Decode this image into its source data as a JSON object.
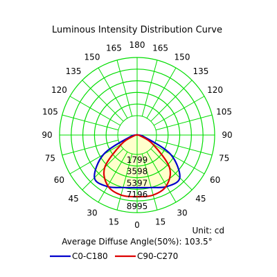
{
  "chart_data": {
    "type": "polar",
    "title": "Luminous Intensity Distribution Curve",
    "unit_label": "Unit: cd",
    "footer": "Average Diffuse Angle(50%): 103.5°",
    "radial_ticks": [
      1799,
      3598,
      5397,
      7196,
      8995
    ],
    "radial_max": 8995,
    "angle_step_deg": 15,
    "angle_labels": {
      "top": [
        "180",
        "165",
        "165"
      ],
      "left": [
        "150",
        "135",
        "120",
        "105",
        "90",
        "75",
        "60",
        "45",
        "30",
        "15"
      ],
      "right": [
        "150",
        "135",
        "120",
        "105",
        "90",
        "75",
        "60",
        "45",
        "30",
        "15"
      ],
      "bottom": "0"
    },
    "series": [
      {
        "name": "C0-C180",
        "color": "#0000cc",
        "fill": "#ffffcc",
        "angles_deg": [
          0,
          15,
          30,
          45,
          60,
          75,
          90
        ],
        "values": [
          6100,
          6300,
          6900,
          7000,
          4500,
          900,
          0
        ]
      },
      {
        "name": "C90-C270",
        "color": "#dd0000",
        "fill": "none",
        "angles_deg": [
          0,
          15,
          30,
          45,
          60,
          75,
          90
        ],
        "values": [
          7150,
          7200,
          6800,
          5300,
          2100,
          400,
          0
        ]
      }
    ],
    "grid": true,
    "grid_color": "#00dd00",
    "legend_position": "bottom"
  }
}
